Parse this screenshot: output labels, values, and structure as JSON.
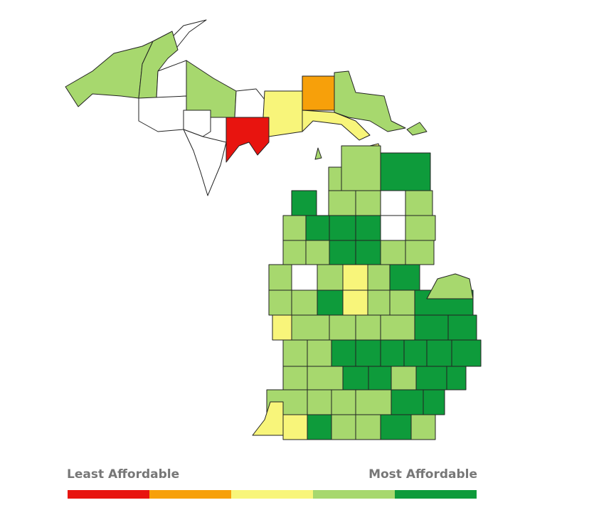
{
  "legend": {
    "low_label": "Least Affordable",
    "high_label": "Most Affordable",
    "colors": [
      "#e8140f",
      "#f7a00a",
      "#f8f57a",
      "#a7d86e",
      "#0e9b3b"
    ]
  }
}
